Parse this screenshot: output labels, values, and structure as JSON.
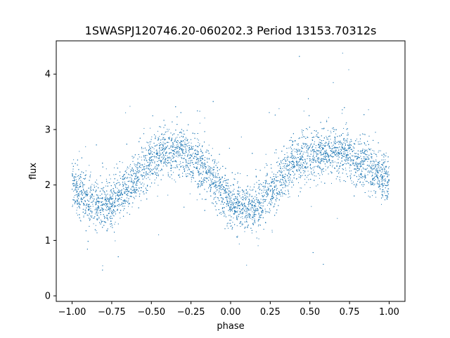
{
  "chart_data": {
    "type": "scatter",
    "title": "1SWASPJ120746.20-060202.3 Period 13153.70312s",
    "xlabel": "phase",
    "ylabel": "flux",
    "xlim": [
      -1.1,
      1.1
    ],
    "ylim": [
      -0.1,
      4.6
    ],
    "xticks": [
      -1.0,
      -0.75,
      -0.5,
      -0.25,
      0.0,
      0.25,
      0.5,
      0.75,
      1.0
    ],
    "xtick_labels": [
      "−1.00",
      "−0.75",
      "−0.50",
      "−0.25",
      "0.00",
      "0.25",
      "0.50",
      "0.75",
      "1.00"
    ],
    "yticks": [
      0,
      1,
      2,
      3,
      4
    ],
    "ytick_labels": [
      "0",
      "1",
      "2",
      "3",
      "4"
    ],
    "grid": false,
    "marker_color": "#1f77b4",
    "series": [
      {
        "trend": {
          "x": [
            -1.0,
            -0.9,
            -0.8,
            -0.7,
            -0.6,
            -0.5,
            -0.4,
            -0.35,
            -0.3,
            -0.2,
            -0.1,
            0.0,
            0.05,
            0.1,
            0.15,
            0.2,
            0.3,
            0.4,
            0.5,
            0.6,
            0.65,
            0.7,
            0.8,
            0.9,
            1.0
          ],
          "y": [
            2.05,
            1.7,
            1.6,
            1.8,
            2.15,
            2.45,
            2.6,
            2.62,
            2.6,
            2.4,
            2.05,
            1.7,
            1.6,
            1.55,
            1.6,
            1.7,
            2.05,
            2.4,
            2.55,
            2.6,
            2.62,
            2.6,
            2.45,
            2.25,
            2.05
          ]
        },
        "scatter_sigma": 0.22
      }
    ]
  }
}
